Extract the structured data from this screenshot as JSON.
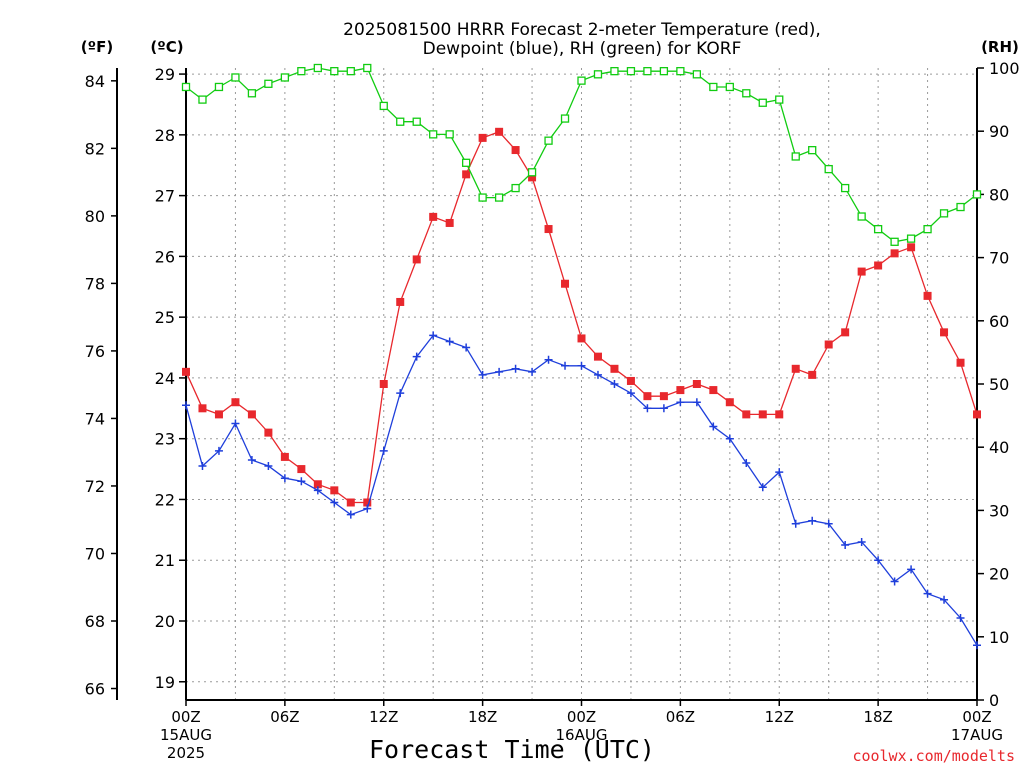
{
  "chart_data": {
    "type": "line",
    "title_line1": "2025081500 HRRR Forecast 2-meter Temperature (red),",
    "title_line2": "Dewpoint (blue), RH (green) for KORF",
    "xlabel": "Forecast Time (UTC)",
    "credit": "coolwx.com/modelts",
    "y_left_outer_label": "(ºF)",
    "y_left_inner_label": "(ºC)",
    "y_right_label": "(RH)",
    "x_range_hours": [
      0,
      48
    ],
    "x_ticks": [
      {
        "hour": 0,
        "line1": "00Z",
        "line2": "15AUG",
        "line3": "2025"
      },
      {
        "hour": 6,
        "line1": "06Z",
        "line2": "",
        "line3": ""
      },
      {
        "hour": 12,
        "line1": "12Z",
        "line2": "",
        "line3": ""
      },
      {
        "hour": 18,
        "line1": "18Z",
        "line2": "",
        "line3": ""
      },
      {
        "hour": 24,
        "line1": "00Z",
        "line2": "16AUG",
        "line3": ""
      },
      {
        "hour": 30,
        "line1": "06Z",
        "line2": "",
        "line3": ""
      },
      {
        "hour": 36,
        "line1": "12Z",
        "line2": "",
        "line3": ""
      },
      {
        "hour": 42,
        "line1": "18Z",
        "line2": "",
        "line3": ""
      },
      {
        "hour": 48,
        "line1": "00Z",
        "line2": "17AUG",
        "line3": ""
      }
    ],
    "y_celsius_range": [
      18.7,
      29.1
    ],
    "y_celsius_ticks": [
      "19",
      "20",
      "21",
      "22",
      "23",
      "24",
      "25",
      "26",
      "27",
      "28",
      "29"
    ],
    "y_fahrenheit_ticks": [
      "66",
      "68",
      "70",
      "72",
      "74",
      "76",
      "78",
      "80",
      "82",
      "84"
    ],
    "y_rh_range": [
      0,
      100
    ],
    "y_rh_ticks": [
      "0",
      "10",
      "20",
      "30",
      "40",
      "50",
      "60",
      "70",
      "80",
      "90",
      "100"
    ],
    "grid": true,
    "series": [
      {
        "name": "Temperature",
        "unit": "C",
        "color": "#e8282d",
        "marker": "filled-square",
        "values": [
          24.1,
          23.5,
          23.4,
          23.6,
          23.4,
          23.1,
          22.7,
          22.5,
          22.25,
          22.15,
          21.95,
          21.95,
          23.9,
          25.25,
          25.95,
          26.65,
          26.55,
          27.35,
          27.95,
          28.05,
          27.75,
          27.3,
          26.45,
          25.55,
          24.65,
          24.35,
          24.15,
          23.95,
          23.7,
          23.7,
          23.8,
          23.9,
          23.8,
          23.6,
          23.4,
          23.4,
          23.4,
          24.15,
          24.05,
          24.55,
          24.75,
          25.75,
          25.85,
          26.05,
          26.15,
          25.35,
          24.75,
          24.25,
          23.4
        ]
      },
      {
        "name": "Dewpoint",
        "unit": "C",
        "color": "#1f3fdb",
        "marker": "plus",
        "values": [
          23.55,
          22.55,
          22.8,
          23.25,
          22.65,
          22.55,
          22.35,
          22.3,
          22.15,
          21.95,
          21.75,
          21.85,
          22.8,
          23.75,
          24.35,
          24.7,
          24.6,
          24.5,
          24.05,
          24.1,
          24.15,
          24.1,
          24.3,
          24.2,
          24.2,
          24.05,
          23.9,
          23.75,
          23.5,
          23.5,
          23.6,
          23.6,
          23.2,
          23.0,
          22.6,
          22.2,
          22.45,
          21.6,
          21.65,
          21.6,
          21.25,
          21.3,
          21.0,
          20.65,
          20.85,
          20.45,
          20.35,
          20.05,
          19.6
        ]
      },
      {
        "name": "RH",
        "unit": "%",
        "color": "#11cc11",
        "marker": "open-square",
        "values": [
          97,
          95,
          97,
          98.5,
          96,
          97.5,
          98.5,
          99.5,
          100,
          99.5,
          99.5,
          100,
          94,
          91.5,
          91.5,
          89.5,
          89.5,
          85,
          79.5,
          79.5,
          81,
          83.5,
          88.5,
          92,
          98,
          99,
          99.5,
          99.5,
          99.5,
          99.5,
          99.5,
          99,
          97,
          97,
          96,
          94.5,
          95,
          86,
          87,
          84,
          81,
          76.5,
          74.5,
          72.5,
          73,
          74.5,
          77,
          78,
          80
        ]
      }
    ]
  }
}
